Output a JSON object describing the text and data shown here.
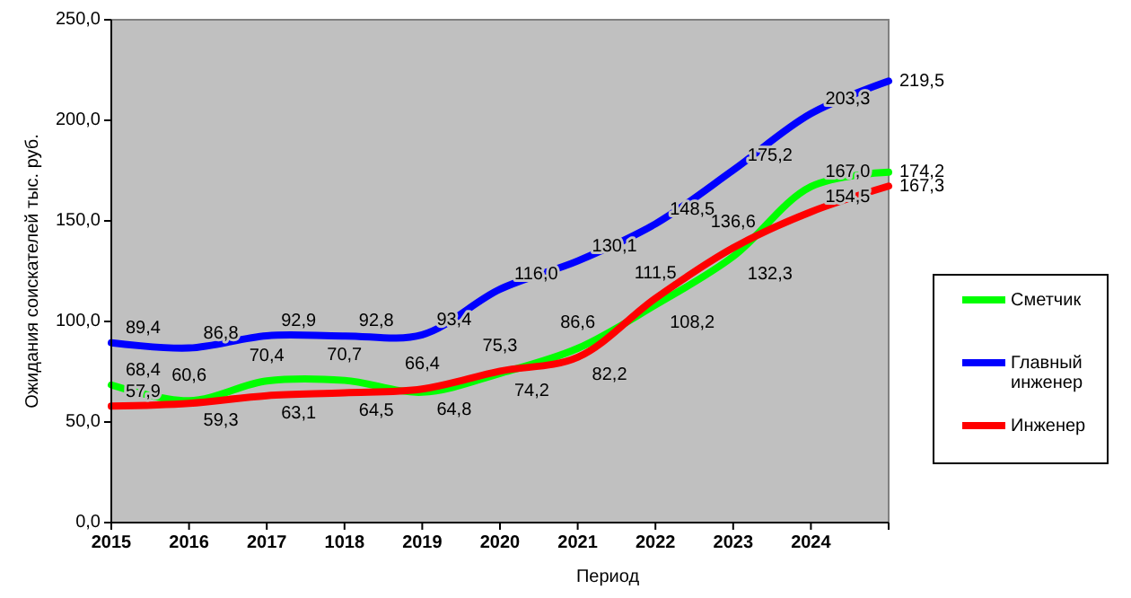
{
  "chart_data": {
    "type": "line",
    "xlabel": "Период",
    "ylabel": "Ожидания  соискателей  тыс.  руб.",
    "categories": [
      "2015",
      "2016",
      "2017",
      "1018",
      "2019",
      "2020",
      "2021",
      "2022",
      "2023",
      "2024",
      null
    ],
    "ylim": [
      0,
      250
    ],
    "yticks": [
      {
        "value": 0,
        "label": "0,0"
      },
      {
        "value": 50,
        "label": "50,0"
      },
      {
        "value": 100,
        "label": "100,0"
      },
      {
        "value": 150,
        "label": "150,0"
      },
      {
        "value": 200,
        "label": "200,0"
      },
      {
        "value": 250,
        "label": "250,0"
      }
    ],
    "series": [
      {
        "name": "Сметчик",
        "color": "#00ff00",
        "values": [
          68.4,
          60.6,
          70.4,
          70.7,
          64.8,
          74.2,
          86.6,
          108.2,
          132.3,
          167.0,
          174.2
        ],
        "value_labels": [
          "68,4",
          "60,6",
          "70,4",
          "70,7",
          "64,8",
          "74,2",
          "86,6",
          "108,2",
          "132,3",
          "167,0",
          "174,2"
        ]
      },
      {
        "name": "Главный инженер",
        "color": "#0000ff",
        "values": [
          89.4,
          86.8,
          92.9,
          92.8,
          93.4,
          116.0,
          130.1,
          148.5,
          175.2,
          203.3,
          219.5
        ],
        "value_labels": [
          "89,4",
          "86,8",
          "92,9",
          "92,8",
          "93,4",
          "116,0",
          "130,1",
          "148,5",
          "175,2",
          "203,3",
          "219,5"
        ]
      },
      {
        "name": "Инженер",
        "color": "#ff0000",
        "values": [
          57.9,
          59.3,
          63.1,
          64.5,
          66.4,
          75.3,
          82.2,
          111.5,
          136.6,
          154.5,
          167.3
        ],
        "value_labels": [
          "57,9",
          "59,3",
          "63,1",
          "64,5",
          "66,4",
          "75,3",
          "82,2",
          "111,5",
          "136,6",
          "154,5",
          "167,3"
        ]
      }
    ],
    "legend": "right",
    "marker": "none",
    "line_style": "solid"
  }
}
